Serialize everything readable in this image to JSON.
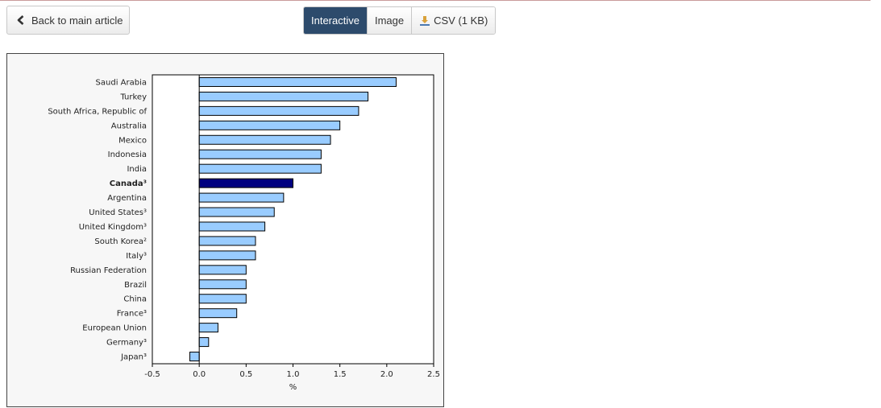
{
  "toolbar": {
    "back_label": "Back to main article",
    "view_tabs": [
      {
        "label": "Interactive",
        "active": true
      },
      {
        "label": "Image",
        "active": false
      },
      {
        "label": "CSV (1 KB)",
        "active": false,
        "icon": "download-icon"
      }
    ]
  },
  "colors": {
    "bar_fill": "#99ccff",
    "bar_highlight": "#000080",
    "bar_stroke": "#000000",
    "active_tab": "#2d4b6c"
  },
  "chart_data": {
    "type": "bar",
    "orientation": "horizontal",
    "categories": [
      "Saudi Arabia",
      "Turkey",
      "South Africa, Republic of",
      "Australia",
      "Mexico",
      "Indonesia",
      "India",
      "Canada³",
      "Argentina",
      "United States³",
      "United Kingdom³",
      "South Korea²",
      "Italy³",
      "Russian Federation",
      "Brazil",
      "China",
      "France³",
      "European Union",
      "Germany³",
      "Japan³"
    ],
    "values": [
      2.1,
      1.8,
      1.7,
      1.5,
      1.4,
      1.3,
      1.3,
      1.0,
      0.9,
      0.8,
      0.7,
      0.6,
      0.6,
      0.5,
      0.5,
      0.5,
      0.4,
      0.2,
      0.1,
      -0.1
    ],
    "highlight_category": "Canada³",
    "xlim": [
      -0.5,
      2.5
    ],
    "xticks": [
      "-0.5",
      "0.0",
      "0.5",
      "1.0",
      "1.5",
      "2.0",
      "2.5"
    ],
    "xlabel": "%",
    "ylabel": "",
    "title": "",
    "grid": false
  }
}
